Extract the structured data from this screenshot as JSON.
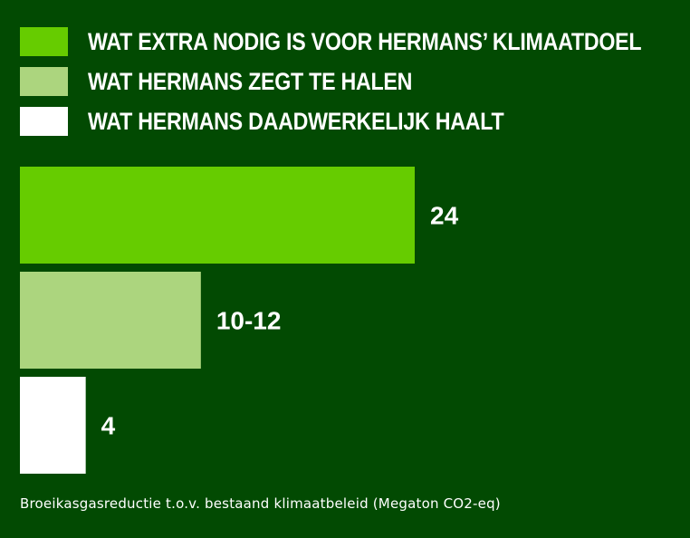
{
  "legend": [
    {
      "label": "WAT EXTRA NODIG IS VOOR HERMANS’ KLIMAATDOEL",
      "color": "#66cc00"
    },
    {
      "label": "WAT HERMANS ZEGT TE HALEN",
      "color": "#acd57e"
    },
    {
      "label": "WAT HERMANS DAADWERKELIJK HAALT",
      "color": "#ffffff"
    }
  ],
  "chart_data": {
    "type": "bar",
    "orientation": "horizontal",
    "categories": [
      "WAT EXTRA NODIG IS VOOR HERMANS’ KLIMAATDOEL",
      "WAT HERMANS ZEGT TE HALEN",
      "WAT HERMANS DAADWERKELIJK HAALT"
    ],
    "values": [
      24,
      11,
      4
    ],
    "data_labels": [
      "24",
      "10-12",
      "4"
    ],
    "colors": [
      "#66cc00",
      "#acd57e",
      "#ffffff"
    ],
    "xlim": [
      0,
      24
    ],
    "grid": false,
    "legend_position": "top-left"
  },
  "footnote": "Broeikasgasreductie t.o.v. bestaand klimaatbeleid (Megaton CO2-eq)"
}
